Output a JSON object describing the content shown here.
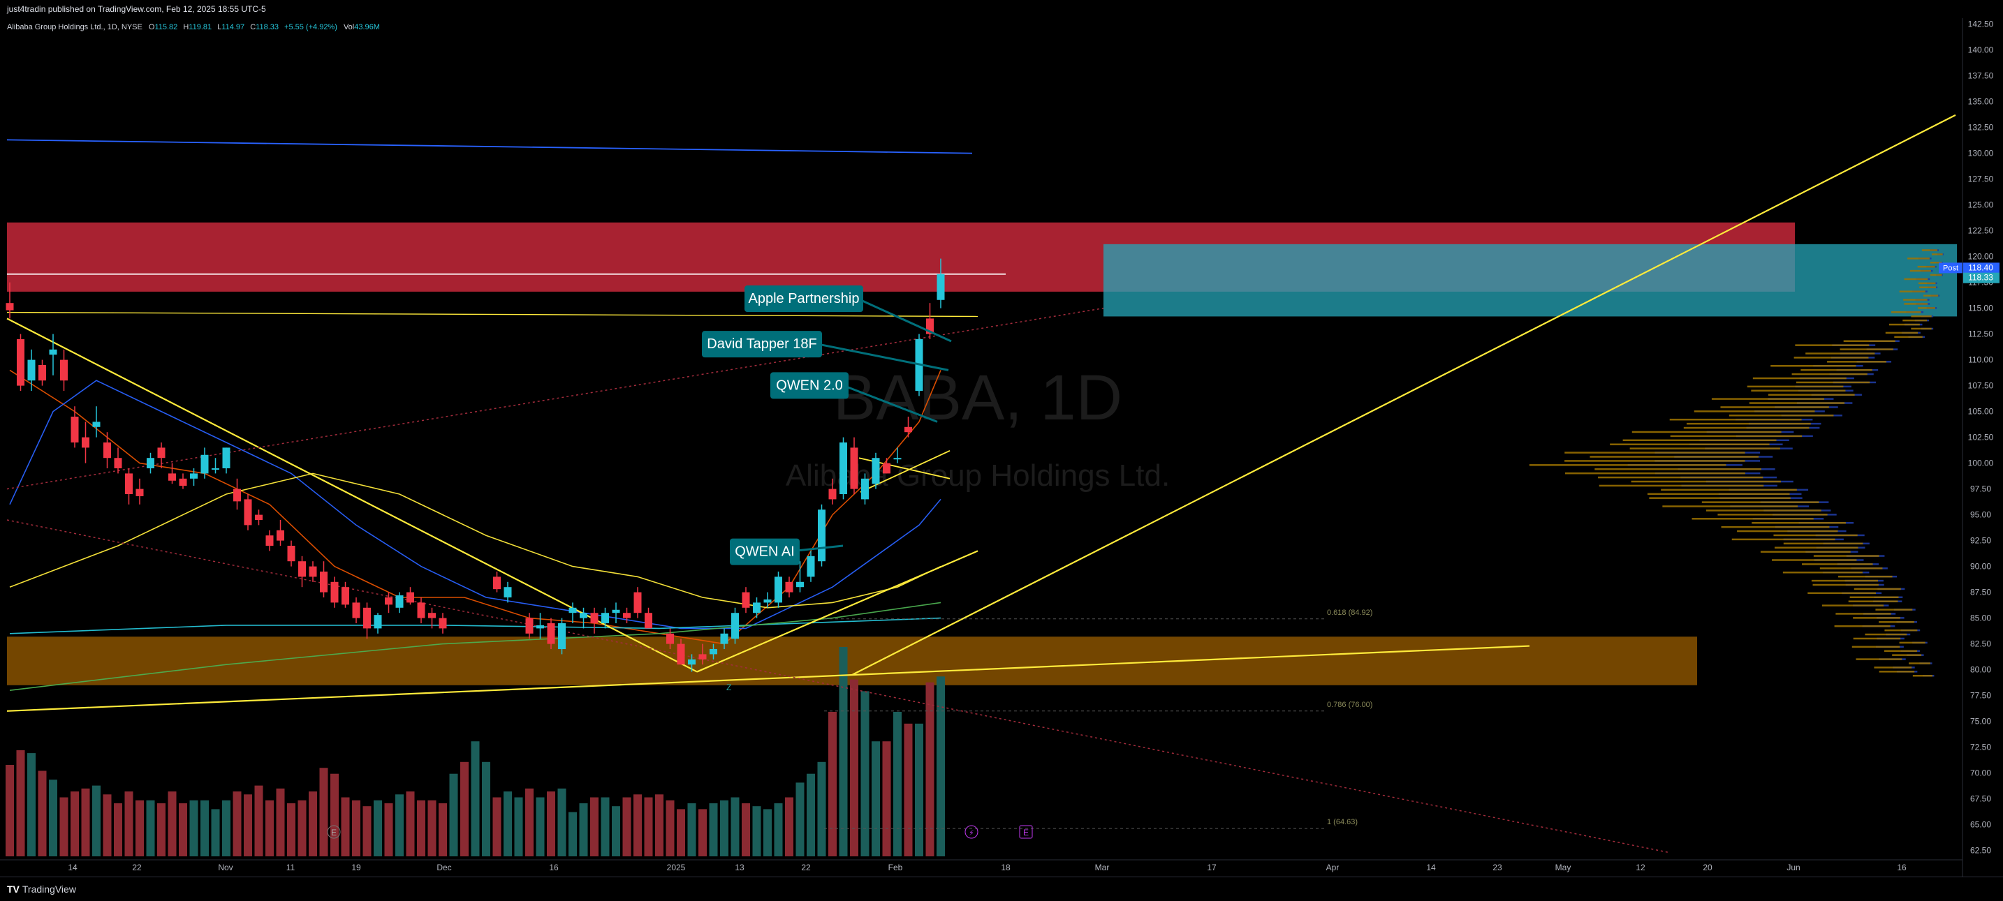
{
  "header": {
    "published": "just4tradin published on TradingView.com, Feb 12, 2025 18:55 UTC-5"
  },
  "legend": {
    "symbol": "Alibaba Group Holdings Ltd., 1D, NYSE",
    "open_label": "O",
    "open": "115.82",
    "high_label": "H",
    "high": "119.81",
    "low_label": "L",
    "low": "114.97",
    "close_label": "C",
    "close": "118.33",
    "change": "+5.55 (+4.92%)",
    "volume_label": "Vol",
    "volume": "43.96M"
  },
  "watermark": {
    "ticker": "BABA, 1D",
    "name": "Alibaba Group Holdings Ltd."
  },
  "footer": {
    "brand": "TradingView",
    "logo": "TV"
  },
  "colors": {
    "up": "#26c6da",
    "down": "#f23645",
    "vol_up": "#1b5e5a",
    "vol_down": "#8b2a32",
    "resistance_zone": "#c62839",
    "support_zone": "#7a4a00",
    "cyan_zone": "#26a6b8",
    "trendline": "#ffeb3b",
    "callout": "#006f7a"
  },
  "icons": {
    "earnings-marker": "E",
    "dividend-marker": "⚡"
  },
  "chart_data": {
    "type": "candlestick",
    "ylim": [
      61.5,
      143.7
    ],
    "y_ticks": [
      62.5,
      65,
      67.5,
      70,
      72.5,
      75,
      77.5,
      80,
      82.5,
      85,
      87.5,
      90,
      92.5,
      95,
      97.5,
      100,
      102.5,
      105,
      107.5,
      110,
      112.5,
      115,
      117.5,
      120,
      122.5,
      125,
      127.5,
      130,
      132.5,
      135,
      137.5,
      140,
      142.5
    ],
    "x_ticks": [
      "14",
      "22",
      "Nov",
      "11",
      "19",
      "Dec",
      "16",
      "2025",
      "13",
      "22",
      "Feb",
      "18",
      "Mar",
      "17",
      "Apr",
      "14",
      "23",
      "May",
      "12",
      "20",
      "Jun",
      "16"
    ],
    "price_labels": {
      "post_label": "Post",
      "post": "118.40",
      "last": "118.33"
    },
    "fib_labels": [
      {
        "text": "0.618 (84.92)",
        "price": 84.92
      },
      {
        "text": "0.786 (76.00)",
        "price": 76.0
      },
      {
        "text": "1 (64.63)",
        "price": 64.63
      }
    ],
    "annotations": [
      {
        "text": "Apple Partnership"
      },
      {
        "text": "David Tapper 18F"
      },
      {
        "text": "QWEN 2.0"
      },
      {
        "text": "QWEN AI"
      }
    ],
    "pivot_label": "Z",
    "candles": [
      [
        0,
        115.5,
        117.5,
        114,
        114.8
      ],
      [
        1,
        112,
        112.5,
        107,
        107.5
      ],
      [
        2,
        108,
        111,
        107,
        110
      ],
      [
        3,
        109.5,
        110,
        107.5,
        108
      ],
      [
        4,
        110.5,
        112.5,
        108.5,
        111
      ],
      [
        5,
        110,
        111,
        107,
        108
      ],
      [
        6,
        104.5,
        105.5,
        101.5,
        102
      ],
      [
        7,
        102.5,
        104,
        100,
        101.5
      ],
      [
        8,
        103.5,
        105.5,
        102.5,
        104
      ],
      [
        9,
        102,
        103,
        99.5,
        100.5
      ],
      [
        10,
        100.5,
        101.5,
        99,
        99.5
      ],
      [
        11,
        99,
        99.5,
        96,
        97
      ],
      [
        12,
        97.5,
        98.5,
        96,
        96.8
      ],
      [
        13,
        99.5,
        101,
        99,
        100.5
      ],
      [
        14,
        101.5,
        102,
        99.5,
        100.5
      ],
      [
        15,
        99,
        100,
        98,
        98.3
      ],
      [
        16,
        98.5,
        99,
        97.5,
        97.8
      ],
      [
        17,
        98.5,
        99.5,
        97.8,
        99
      ],
      [
        18,
        99,
        101.5,
        98.5,
        100.8
      ],
      [
        19,
        99.5,
        100.5,
        99,
        99.5
      ],
      [
        20,
        99.5,
        101.5,
        99,
        101.5
      ],
      [
        21,
        97.5,
        98.5,
        95.5,
        96.3
      ],
      [
        22,
        96.5,
        97,
        93.5,
        94
      ],
      [
        23,
        95,
        95.5,
        94,
        94.5
      ],
      [
        24,
        93,
        93.5,
        91.5,
        92
      ],
      [
        25,
        93.5,
        94.5,
        92,
        92.5
      ],
      [
        26,
        92,
        92.5,
        90,
        90.5
      ],
      [
        27,
        90.5,
        91,
        88,
        89
      ],
      [
        28,
        90,
        90.5,
        88.5,
        89
      ],
      [
        29,
        89.5,
        90.5,
        87,
        87.5
      ],
      [
        30,
        88.5,
        89,
        86,
        86.5
      ],
      [
        31,
        88,
        88.5,
        86,
        86.3
      ],
      [
        32,
        86.5,
        87,
        84.5,
        85
      ],
      [
        33,
        86,
        86.5,
        83,
        84
      ],
      [
        34,
        84,
        85.5,
        83.5,
        85.3
      ],
      [
        35,
        87,
        87.5,
        85.5,
        86.3
      ],
      [
        36,
        86,
        87.5,
        85.5,
        87.2
      ],
      [
        37,
        87.5,
        88,
        86.3,
        86.5
      ],
      [
        38,
        86.5,
        87,
        84.5,
        85
      ],
      [
        39,
        85.5,
        86,
        84,
        85
      ],
      [
        40,
        85,
        85.5,
        83.5,
        84
      ],
      [
        45,
        89,
        89.5,
        87.5,
        87.8
      ],
      [
        46,
        87,
        88.5,
        86.5,
        88
      ],
      [
        48,
        85,
        85.5,
        83,
        83.5
      ],
      [
        49,
        84,
        85.5,
        83,
        84.3
      ],
      [
        50,
        84.5,
        85,
        82,
        82.5
      ],
      [
        51,
        82,
        85,
        81.5,
        84.5
      ],
      [
        52,
        85.5,
        86.5,
        84.5,
        86
      ],
      [
        53,
        85,
        86,
        84,
        85.5
      ],
      [
        54,
        85.5,
        86,
        83.5,
        84.5
      ],
      [
        55,
        84.5,
        86,
        84,
        85.5
      ],
      [
        56,
        85.5,
        86.5,
        84.5,
        85.8
      ],
      [
        57,
        85.5,
        86,
        84.5,
        85
      ],
      [
        58,
        87.5,
        88,
        85,
        85.5
      ],
      [
        59,
        85.5,
        86,
        84,
        84
      ],
      [
        61,
        83.5,
        84,
        82,
        82.5
      ],
      [
        62,
        82.5,
        83,
        80.5,
        80.5
      ],
      [
        63,
        80.5,
        81.5,
        79.8,
        81
      ],
      [
        64,
        81.5,
        82.5,
        80.5,
        81
      ],
      [
        65,
        81.5,
        82.5,
        81,
        82
      ],
      [
        66,
        82.5,
        84,
        82,
        83.5
      ],
      [
        67,
        83,
        86,
        82.5,
        85.5
      ],
      [
        68,
        87.5,
        88,
        85.5,
        86
      ],
      [
        69,
        85.5,
        87,
        85,
        86.5
      ],
      [
        70,
        86.5,
        87.5,
        86,
        86.8
      ],
      [
        71,
        86.5,
        89.5,
        86,
        89
      ],
      [
        72,
        88.5,
        89,
        87,
        87.5
      ],
      [
        73,
        88,
        90.5,
        87.5,
        88.5
      ],
      [
        74,
        89,
        91.5,
        88.5,
        91
      ],
      [
        75,
        90.5,
        96,
        90,
        95.5
      ],
      [
        76,
        97.5,
        98.5,
        96,
        96.5
      ],
      [
        77,
        97,
        102.5,
        96.5,
        102
      ],
      [
        78,
        101.5,
        102.5,
        97,
        97.5
      ],
      [
        79,
        96.5,
        99,
        96,
        98.5
      ],
      [
        80,
        98,
        101,
        97.5,
        100.5
      ],
      [
        81,
        100,
        100.5,
        99,
        99
      ],
      [
        82,
        100.5,
        101.5,
        100,
        100.5
      ],
      [
        83,
        103.5,
        104.5,
        102.5,
        103
      ],
      [
        84,
        107,
        112.5,
        106.5,
        112
      ],
      [
        85,
        114,
        115.5,
        112,
        112.5
      ],
      [
        86,
        115.8,
        119.8,
        115,
        118.3
      ]
    ],
    "volume_bars": [
      [
        0,
        62
      ],
      [
        1,
        72
      ],
      [
        2,
        70
      ],
      [
        3,
        58
      ],
      [
        4,
        52
      ],
      [
        5,
        40
      ],
      [
        6,
        44
      ],
      [
        7,
        46
      ],
      [
        8,
        48
      ],
      [
        9,
        42
      ],
      [
        10,
        36
      ],
      [
        11,
        44
      ],
      [
        12,
        38
      ],
      [
        13,
        38
      ],
      [
        14,
        36
      ],
      [
        15,
        44
      ],
      [
        16,
        36
      ],
      [
        17,
        38
      ],
      [
        18,
        38
      ],
      [
        19,
        32
      ],
      [
        20,
        38
      ],
      [
        21,
        44
      ],
      [
        22,
        42
      ],
      [
        23,
        48
      ],
      [
        24,
        38
      ],
      [
        25,
        46
      ],
      [
        26,
        36
      ],
      [
        27,
        38
      ],
      [
        28,
        44
      ],
      [
        29,
        60
      ],
      [
        30,
        56
      ],
      [
        31,
        40
      ],
      [
        32,
        38
      ],
      [
        33,
        34
      ],
      [
        34,
        38
      ],
      [
        35,
        36
      ],
      [
        36,
        42
      ],
      [
        37,
        44
      ],
      [
        38,
        38
      ],
      [
        39,
        38
      ],
      [
        40,
        36
      ],
      [
        41,
        56
      ],
      [
        42,
        64
      ],
      [
        43,
        78
      ],
      [
        44,
        64
      ],
      [
        45,
        40
      ],
      [
        46,
        44
      ],
      [
        47,
        40
      ],
      [
        48,
        46
      ],
      [
        49,
        40
      ],
      [
        50,
        44
      ],
      [
        51,
        46
      ],
      [
        52,
        30
      ],
      [
        53,
        36
      ],
      [
        54,
        40
      ],
      [
        55,
        40
      ],
      [
        56,
        34
      ],
      [
        57,
        40
      ],
      [
        58,
        42
      ],
      [
        59,
        40
      ],
      [
        60,
        42
      ],
      [
        61,
        38
      ],
      [
        62,
        32
      ],
      [
        63,
        36
      ],
      [
        64,
        32
      ],
      [
        65,
        36
      ],
      [
        66,
        38
      ],
      [
        67,
        40
      ],
      [
        68,
        36
      ],
      [
        69,
        34
      ],
      [
        70,
        32
      ],
      [
        71,
        36
      ],
      [
        72,
        40
      ],
      [
        73,
        50
      ],
      [
        74,
        56
      ],
      [
        75,
        64
      ],
      [
        76,
        98
      ],
      [
        77,
        142
      ],
      [
        78,
        120
      ],
      [
        79,
        112
      ],
      [
        80,
        78
      ],
      [
        81,
        78
      ],
      [
        82,
        98
      ],
      [
        83,
        90
      ],
      [
        84,
        90
      ],
      [
        85,
        118
      ],
      [
        86,
        122
      ]
    ],
    "volume_max": 142,
    "ema_lines": [
      {
        "name": "EMA fast",
        "color": "#e65100",
        "points": [
          [
            0,
            109
          ],
          [
            6,
            105
          ],
          [
            12,
            100
          ],
          [
            18,
            99
          ],
          [
            24,
            96
          ],
          [
            30,
            90
          ],
          [
            36,
            87
          ],
          [
            42,
            87
          ],
          [
            48,
            85
          ],
          [
            54,
            84.5
          ],
          [
            60,
            83.5
          ],
          [
            66,
            82.5
          ],
          [
            72,
            88
          ],
          [
            76,
            95
          ],
          [
            80,
            99
          ],
          [
            84,
            104
          ],
          [
            86,
            109
          ]
        ]
      },
      {
        "name": "EMA mid",
        "color": "#2962ff",
        "points": [
          [
            0,
            96
          ],
          [
            4,
            105
          ],
          [
            8,
            108
          ],
          [
            14,
            105
          ],
          [
            20,
            102
          ],
          [
            26,
            99
          ],
          [
            32,
            94
          ],
          [
            38,
            90
          ],
          [
            44,
            87
          ],
          [
            50,
            86
          ],
          [
            56,
            85
          ],
          [
            62,
            84
          ],
          [
            68,
            84
          ],
          [
            72,
            86
          ],
          [
            76,
            88
          ],
          [
            80,
            91
          ],
          [
            84,
            94
          ],
          [
            86,
            96.5
          ]
        ]
      },
      {
        "name": "MA long",
        "color": "#ffeb3b",
        "points": [
          [
            0,
            88
          ],
          [
            10,
            92
          ],
          [
            20,
            97
          ],
          [
            28,
            99
          ],
          [
            36,
            97
          ],
          [
            44,
            93
          ],
          [
            52,
            90
          ],
          [
            58,
            89
          ],
          [
            64,
            87
          ],
          [
            70,
            86
          ],
          [
            76,
            86.5
          ],
          [
            82,
            88
          ],
          [
            86,
            90
          ]
        ]
      },
      {
        "name": "MA 200",
        "color": "#26c6da",
        "points": [
          [
            0,
            83.5
          ],
          [
            20,
            84.3
          ],
          [
            40,
            84.3
          ],
          [
            60,
            84
          ],
          [
            86,
            85
          ]
        ]
      },
      {
        "name": "MA 100",
        "color": "#4caf50",
        "points": [
          [
            0,
            78
          ],
          [
            20,
            80.5
          ],
          [
            40,
            82.5
          ],
          [
            60,
            83.5
          ],
          [
            76,
            85
          ],
          [
            86,
            86.5
          ]
        ]
      }
    ]
  }
}
